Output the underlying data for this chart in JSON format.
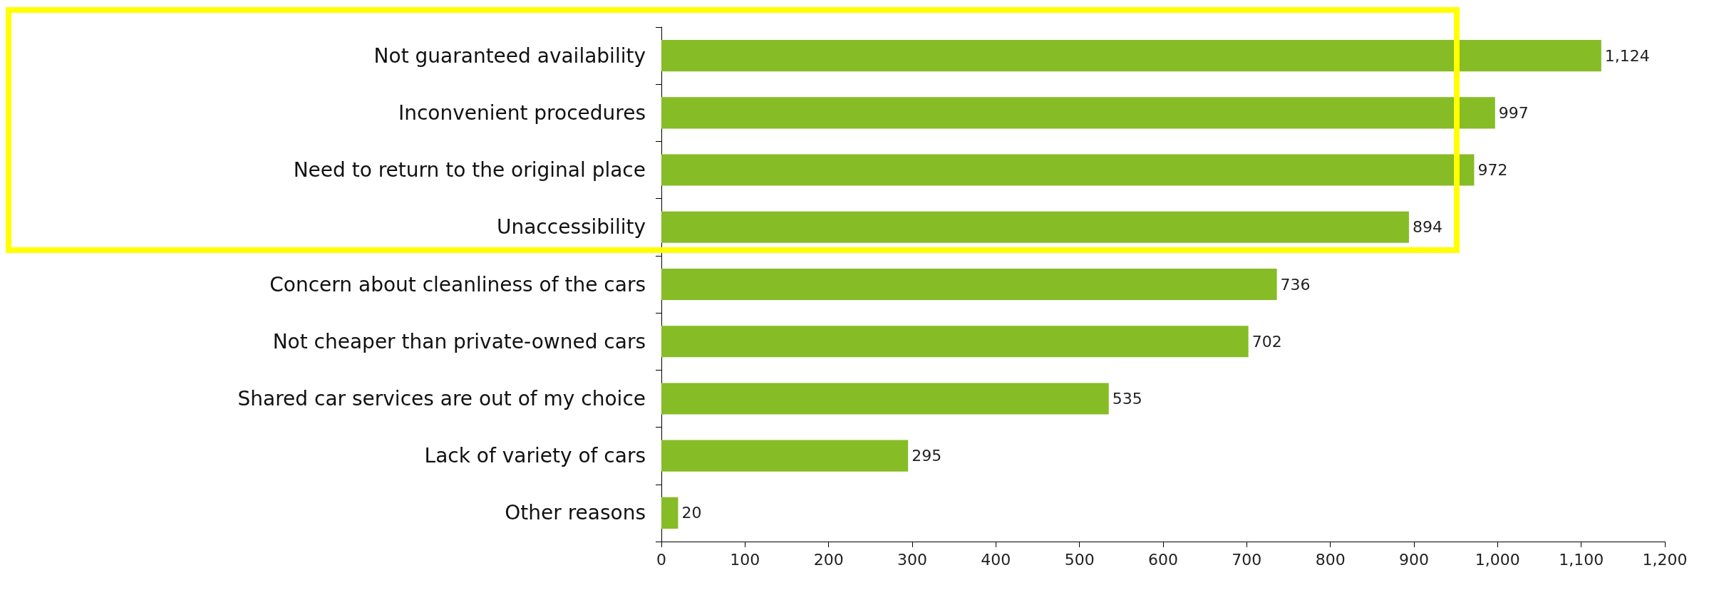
{
  "chart_data": {
    "type": "bar",
    "orientation": "horizontal",
    "categories": [
      "Not guaranteed availability",
      "Inconvenient procedures",
      "Need to return to the original place",
      "Unaccessibility",
      "Concern about cleanliness of the cars",
      "Not cheaper than private-owned cars",
      "Shared car services are out of my choice",
      "Lack of variety of cars",
      "Other reasons"
    ],
    "values": [
      1124,
      997,
      972,
      894,
      736,
      702,
      535,
      295,
      20
    ],
    "value_labels": [
      "1,124",
      "997",
      "972",
      "894",
      "736",
      "702",
      "535",
      "295",
      "20"
    ],
    "color": "#86bc25",
    "xlim": [
      0,
      1200
    ],
    "xticks": [
      0,
      100,
      200,
      300,
      400,
      500,
      600,
      700,
      800,
      900,
      {
        "value": 1000,
        "label": "1,000"
      },
      {
        "value": 1100,
        "label": "1,100"
      },
      {
        "value": 1200,
        "label": "1,200"
      }
    ],
    "grid": false
  }
}
